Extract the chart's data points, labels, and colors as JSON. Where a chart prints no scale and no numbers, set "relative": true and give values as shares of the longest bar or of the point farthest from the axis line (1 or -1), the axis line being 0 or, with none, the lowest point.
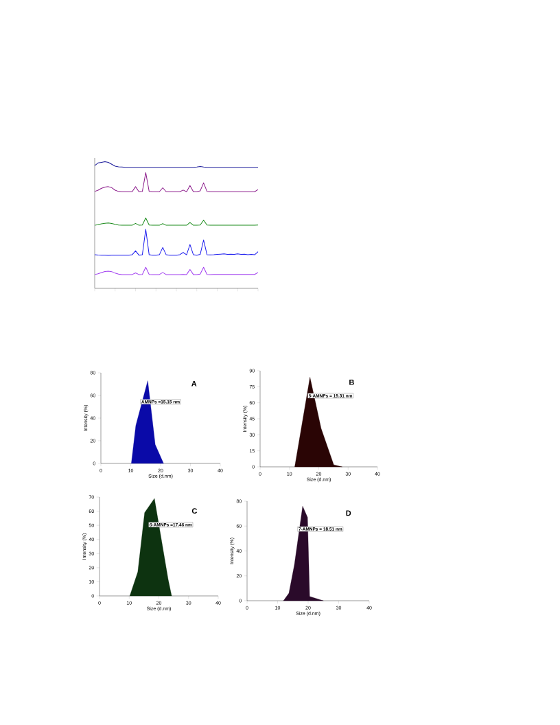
{
  "chart_data": [
    {
      "type": "line",
      "relative": true,
      "categories": [
        null,
        null,
        null,
        null,
        null,
        null,
        null,
        null,
        null,
        null,
        null,
        null,
        null,
        null,
        null,
        null,
        null,
        null,
        null,
        null,
        null,
        null,
        null,
        null,
        null,
        null,
        null,
        null,
        null,
        null,
        null,
        null,
        null,
        null,
        null,
        null,
        null,
        null,
        null,
        null,
        null,
        null,
        null,
        null,
        null,
        null,
        null,
        null,
        null
      ],
      "series": [
        {
          "color": "#1a1a9a",
          "values": [
            0.97,
            0.99,
            0.995,
            1.0,
            0.995,
            0.98,
            0.965,
            0.96,
            0.958,
            0.956,
            0.955,
            0.955,
            0.956,
            0.955,
            0.955,
            0.955,
            0.955,
            0.955,
            0.955,
            0.955,
            0.955,
            0.955,
            0.955,
            0.955,
            0.955,
            0.955,
            0.955,
            0.955,
            0.956,
            0.955,
            0.958,
            0.962,
            0.958,
            0.955,
            0.955,
            0.955,
            0.955,
            0.955,
            0.955,
            0.955,
            0.955,
            0.955,
            0.955,
            0.955,
            0.955,
            0.955,
            0.955,
            0.955,
            0.955
          ]
        },
        {
          "color": "#8b1a8b",
          "values": [
            0.765,
            0.775,
            0.79,
            0.8,
            0.803,
            0.795,
            0.775,
            0.765,
            0.763,
            0.763,
            0.763,
            0.763,
            0.803,
            0.763,
            0.765,
            0.914,
            0.765,
            0.763,
            0.763,
            0.763,
            0.794,
            0.763,
            0.763,
            0.763,
            0.763,
            0.763,
            0.776,
            0.763,
            0.812,
            0.763,
            0.763,
            0.77,
            0.833,
            0.765,
            0.763,
            0.763,
            0.763,
            0.763,
            0.763,
            0.763,
            0.763,
            0.763,
            0.763,
            0.763,
            0.763,
            0.763,
            0.763,
            0.763,
            0.78
          ]
        },
        {
          "color": "#1a8a1a",
          "values": [
            0.498,
            0.503,
            0.51,
            0.514,
            0.516,
            0.512,
            0.505,
            0.5,
            0.498,
            0.498,
            0.498,
            0.498,
            0.513,
            0.498,
            0.5,
            0.556,
            0.5,
            0.498,
            0.498,
            0.498,
            0.511,
            0.498,
            0.498,
            0.498,
            0.498,
            0.498,
            0.498,
            0.498,
            0.52,
            0.498,
            0.498,
            0.5,
            0.538,
            0.5,
            0.498,
            0.498,
            0.498,
            0.498,
            0.498,
            0.498,
            0.498,
            0.498,
            0.498,
            0.498,
            0.498,
            0.498,
            0.498,
            0.498,
            0.5
          ]
        },
        {
          "color": "#1a1aee",
          "values": [
            0.265,
            0.263,
            0.262,
            0.261,
            0.26,
            0.262,
            0.262,
            0.262,
            0.262,
            0.262,
            0.262,
            0.265,
            0.296,
            0.262,
            0.265,
            0.466,
            0.265,
            0.262,
            0.262,
            0.265,
            0.323,
            0.265,
            0.262,
            0.262,
            0.262,
            0.266,
            0.283,
            0.265,
            0.346,
            0.265,
            0.262,
            0.268,
            0.382,
            0.266,
            0.264,
            0.265,
            0.268,
            0.27,
            0.272,
            0.268,
            0.27,
            0.268,
            0.272,
            0.268,
            0.27,
            0.266,
            0.268,
            0.265,
            0.289
          ]
        },
        {
          "color": "#a03cf0",
          "values": [
            0.109,
            0.115,
            0.125,
            0.133,
            0.136,
            0.132,
            0.12,
            0.112,
            0.109,
            0.109,
            0.109,
            0.109,
            0.122,
            0.109,
            0.11,
            0.167,
            0.11,
            0.109,
            0.109,
            0.109,
            0.125,
            0.109,
            0.109,
            0.109,
            0.109,
            0.109,
            0.11,
            0.109,
            0.149,
            0.109,
            0.109,
            0.112,
            0.167,
            0.11,
            0.109,
            0.11,
            0.11,
            0.11,
            0.11,
            0.11,
            0.11,
            0.11,
            0.11,
            0.11,
            0.11,
            0.11,
            0.11,
            0.11,
            0.125
          ]
        }
      ]
    },
    {
      "type": "area",
      "title": "A",
      "xlabel": "Size (d.nm)",
      "ylabel": "Intensity (%)",
      "annotations": [
        "AMNPs =15.15 nm"
      ],
      "x": [
        10.2,
        11.7,
        15.7,
        18.2,
        21.0
      ],
      "values": [
        0,
        33.5,
        73,
        16.6,
        0
      ],
      "color": "#0a0aa8",
      "xlim": [
        0,
        40
      ],
      "xticks": [
        0,
        10,
        20,
        30,
        40
      ],
      "ylim": [
        0,
        80
      ],
      "yticks": [
        0,
        20,
        40,
        60,
        80
      ]
    },
    {
      "type": "area",
      "title": "B",
      "xlabel": "Size (d.nm)",
      "ylabel": "Intensity (%)",
      "annotations": [
        "5-AMNPs = 19.31 nm"
      ],
      "x": [
        11.8,
        17.0,
        20.8,
        25.1,
        28.0
      ],
      "values": [
        0,
        84,
        36,
        2,
        0
      ],
      "color": "#2a0505",
      "xlim": [
        0,
        40
      ],
      "xticks": [
        0,
        10,
        20,
        30,
        40
      ],
      "ylim": [
        0,
        90
      ],
      "yticks": [
        0,
        15,
        30,
        45,
        60,
        75,
        90
      ]
    },
    {
      "type": "area",
      "title": "C",
      "xlabel": "Size (d.nm)",
      "ylabel": "Intensity (%)",
      "annotations": [
        "6-AMNPs =17.46 nm"
      ],
      "x": [
        10.2,
        12.9,
        15.2,
        18.5,
        23.1,
        24.3
      ],
      "values": [
        0,
        17,
        59,
        69,
        12,
        0
      ],
      "color": "#0d3310",
      "xlim": [
        0,
        40
      ],
      "xticks": [
        0,
        10,
        20,
        30,
        40
      ],
      "ylim": [
        0,
        70
      ],
      "yticks": [
        0,
        10,
        20,
        30,
        40,
        50,
        60,
        70
      ]
    },
    {
      "type": "area",
      "title": "D",
      "xlabel": "Size (d.nm)",
      "ylabel": "Intensity (%)",
      "annotations": [
        "7-AMNPs = 18.51 nm"
      ],
      "x": [
        11.9,
        13.7,
        15.5,
        18.2,
        19.8,
        20.5,
        25.0
      ],
      "values": [
        0,
        6,
        29,
        76,
        67,
        3.5,
        0
      ],
      "color": "#2a0a2a",
      "xlim": [
        0,
        40
      ],
      "xticks": [
        0,
        10,
        20,
        30,
        40
      ],
      "ylim": [
        0,
        80
      ],
      "yticks": [
        0,
        20,
        40,
        60,
        80
      ]
    }
  ]
}
